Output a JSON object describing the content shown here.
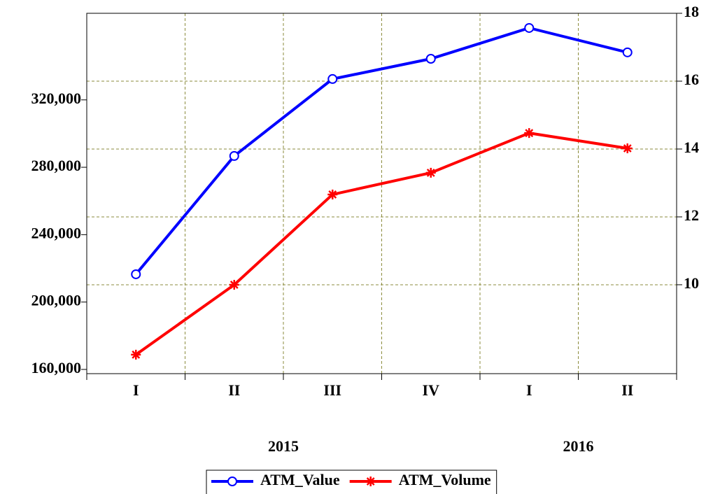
{
  "chart_data": {
    "type": "line",
    "categories": [
      "I",
      "II",
      "III",
      "IV",
      "I",
      "II"
    ],
    "groups": [
      {
        "label": "2015",
        "categories": 4
      },
      {
        "label": "2016",
        "categories": 2
      }
    ],
    "series": [
      {
        "name": "ATM_Value",
        "color": "#0000ff",
        "marker": "circle",
        "values": [
          216500,
          286700,
          332400,
          344400,
          362700,
          348200
        ]
      },
      {
        "name": "ATM_Volume",
        "color": "#ff0000",
        "marker": "star",
        "axis": "y2",
        "values": [
          7.94,
          10.0,
          12.66,
          13.3,
          14.47,
          14.02
        ]
      }
    ],
    "ylim": [
      157500,
      371400
    ],
    "yticks": [
      {
        "value": 160000,
        "label": "160,000"
      },
      {
        "value": 200000,
        "label": "200,000"
      },
      {
        "value": 240000,
        "label": "240,000"
      },
      {
        "value": 280000,
        "label": "280,000"
      },
      {
        "value": 320000,
        "label": "320,000"
      }
    ],
    "y2lim": [
      7.38,
      18
    ],
    "y2ticks": [
      10,
      12,
      14,
      16,
      18
    ],
    "grid": true,
    "legend": "bottom"
  }
}
